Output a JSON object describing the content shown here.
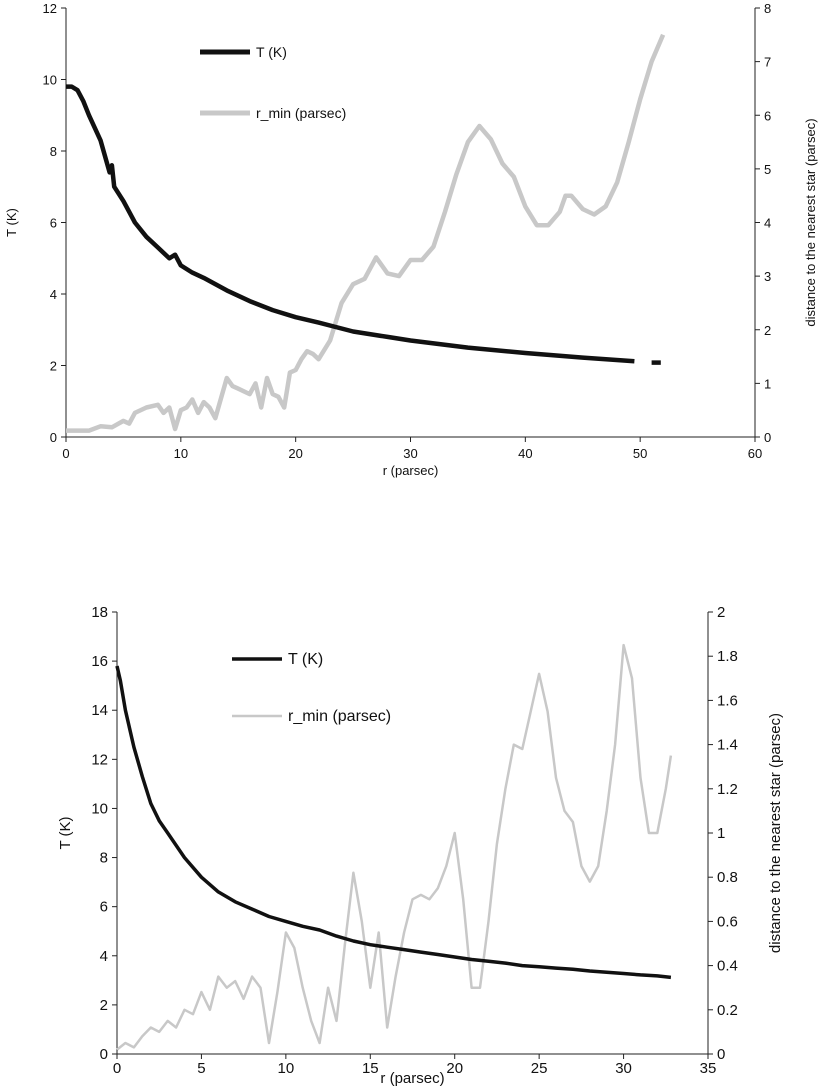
{
  "chart_data": [
    {
      "type": "line",
      "xlabel": "r (parsec)",
      "ylabel": "T (K)",
      "y2label": "distance to the nearest star (parsec)",
      "xlim": [
        0,
        60
      ],
      "ylim": [
        0,
        12
      ],
      "y2lim": [
        0,
        8
      ],
      "x_ticks": [
        "0",
        "10",
        "20",
        "30",
        "40",
        "50",
        "60"
      ],
      "y_ticks": [
        "0",
        "2",
        "4",
        "6",
        "8",
        "10",
        "12"
      ],
      "y2_ticks": [
        "0",
        "1",
        "2",
        "3",
        "4",
        "5",
        "6",
        "7",
        "8"
      ],
      "legend_position": "top-left",
      "grid": false,
      "series": [
        {
          "name": "T (K)",
          "axis": "left",
          "color": "#111111",
          "x": [
            0,
            0.5,
            1,
            1.5,
            2,
            3,
            3.8,
            4,
            4.2,
            5,
            6,
            7,
            8,
            9,
            9.5,
            10,
            11,
            12,
            14,
            16,
            18,
            20,
            22,
            25,
            28,
            30,
            35,
            40,
            45,
            49.5
          ],
          "y": [
            9.8,
            9.8,
            9.7,
            9.4,
            9.0,
            8.3,
            7.4,
            7.6,
            7.0,
            6.6,
            6.0,
            5.6,
            5.3,
            5.0,
            5.1,
            4.8,
            4.6,
            4.45,
            4.1,
            3.8,
            3.55,
            3.35,
            3.2,
            2.95,
            2.8,
            2.7,
            2.5,
            2.35,
            2.22,
            2.12
          ]
        },
        {
          "name": "",
          "axis": "left",
          "color": "#111111",
          "x": [
            51,
            51.8
          ],
          "y": [
            2.08,
            2.08
          ]
        },
        {
          "name": "r_min (parsec)",
          "axis": "right",
          "color": "#c8c8c8",
          "x": [
            0,
            2,
            3,
            4,
            5,
            5.5,
            6,
            7,
            8,
            8.5,
            9,
            9.5,
            10,
            10.5,
            11,
            11.5,
            12,
            12.5,
            13,
            14,
            14.5,
            15,
            16,
            16.5,
            17,
            17.5,
            18,
            18.5,
            19,
            19.5,
            20,
            20.5,
            21,
            21.5,
            22,
            23,
            24,
            25,
            26,
            27,
            28,
            29,
            30,
            31,
            32,
            33,
            34,
            35,
            36,
            37,
            38,
            39,
            40,
            41,
            42,
            43,
            43.5,
            44,
            45,
            46,
            47,
            48,
            49,
            50,
            51,
            52
          ],
          "y": [
            0.12,
            0.12,
            0.2,
            0.18,
            0.3,
            0.25,
            0.45,
            0.55,
            0.6,
            0.45,
            0.55,
            0.15,
            0.5,
            0.55,
            0.7,
            0.45,
            0.65,
            0.55,
            0.35,
            1.1,
            0.95,
            0.9,
            0.8,
            1.0,
            0.55,
            1.1,
            0.8,
            0.75,
            0.55,
            1.2,
            1.25,
            1.45,
            1.6,
            1.55,
            1.45,
            1.8,
            2.5,
            2.85,
            2.95,
            3.35,
            3.05,
            3.0,
            3.3,
            3.3,
            3.55,
            4.2,
            4.9,
            5.5,
            5.8,
            5.55,
            5.1,
            4.85,
            4.3,
            3.95,
            3.95,
            4.2,
            4.5,
            4.5,
            4.25,
            4.15,
            4.3,
            4.75,
            5.5,
            6.3,
            7.0,
            7.5
          ]
        }
      ]
    },
    {
      "type": "line",
      "xlabel": "r (parsec)",
      "ylabel": "T (K)",
      "y2label": "distance to the nearest star (parsec)",
      "xlim": [
        0,
        35
      ],
      "ylim": [
        0,
        18
      ],
      "y2lim": [
        0,
        2
      ],
      "x_ticks": [
        "0",
        "5",
        "10",
        "15",
        "20",
        "25",
        "30",
        "35"
      ],
      "y_ticks": [
        "0",
        "2",
        "4",
        "6",
        "8",
        "10",
        "12",
        "14",
        "16",
        "18"
      ],
      "y2_ticks": [
        "0",
        "0.2",
        "0.4",
        "0.6",
        "0.8",
        "1",
        "1.2",
        "1.4",
        "1.6",
        "1.8",
        "2"
      ],
      "legend_position": "top-left",
      "grid": false,
      "series": [
        {
          "name": "T (K)",
          "axis": "left",
          "color": "#111111",
          "x": [
            0,
            0.2,
            0.5,
            1,
            1.5,
            2,
            2.5,
            3,
            4,
            5,
            6,
            7,
            8,
            9,
            10,
            11,
            12,
            13,
            14,
            15,
            16,
            17,
            18,
            19,
            20,
            21,
            22,
            23,
            24,
            25,
            26,
            27,
            28,
            29,
            30,
            31,
            32,
            32.8
          ],
          "y": [
            15.8,
            15.2,
            14.0,
            12.5,
            11.3,
            10.2,
            9.5,
            9.0,
            8.0,
            7.2,
            6.6,
            6.2,
            5.9,
            5.6,
            5.4,
            5.2,
            5.05,
            4.8,
            4.6,
            4.45,
            4.35,
            4.25,
            4.15,
            4.05,
            3.95,
            3.85,
            3.78,
            3.7,
            3.6,
            3.55,
            3.5,
            3.45,
            3.38,
            3.33,
            3.28,
            3.22,
            3.18,
            3.12
          ]
        },
        {
          "name": "r_min (parsec)",
          "axis": "right",
          "color": "#c8c8c8",
          "x": [
            0,
            0.5,
            1,
            1.5,
            2,
            2.5,
            3,
            3.5,
            4,
            4.5,
            5,
            5.5,
            6,
            6.5,
            7,
            7.5,
            8,
            8.5,
            9,
            9.5,
            10,
            10.5,
            11,
            11.5,
            12,
            12.5,
            13,
            13.5,
            14,
            14.5,
            15,
            15.5,
            16,
            16.5,
            17,
            17.5,
            18,
            18.5,
            19,
            19.5,
            20,
            20.5,
            21,
            21.5,
            22,
            22.5,
            23,
            23.5,
            24,
            24.5,
            25,
            25.5,
            26,
            26.5,
            27,
            27.5,
            28,
            28.5,
            29,
            29.5,
            30,
            30.5,
            31,
            31.5,
            32,
            32.5,
            32.8
          ],
          "y": [
            0.02,
            0.05,
            0.03,
            0.08,
            0.12,
            0.1,
            0.15,
            0.12,
            0.2,
            0.18,
            0.28,
            0.2,
            0.35,
            0.3,
            0.33,
            0.25,
            0.35,
            0.3,
            0.05,
            0.28,
            0.55,
            0.48,
            0.3,
            0.15,
            0.05,
            0.3,
            0.15,
            0.5,
            0.82,
            0.6,
            0.3,
            0.55,
            0.12,
            0.35,
            0.55,
            0.7,
            0.72,
            0.7,
            0.75,
            0.85,
            1.0,
            0.7,
            0.3,
            0.3,
            0.6,
            0.95,
            1.2,
            1.4,
            1.38,
            1.55,
            1.72,
            1.55,
            1.25,
            1.1,
            1.05,
            0.85,
            0.78,
            0.85,
            1.1,
            1.4,
            1.85,
            1.7,
            1.25,
            1.0,
            1.0,
            1.2,
            1.35
          ]
        }
      ]
    }
  ]
}
